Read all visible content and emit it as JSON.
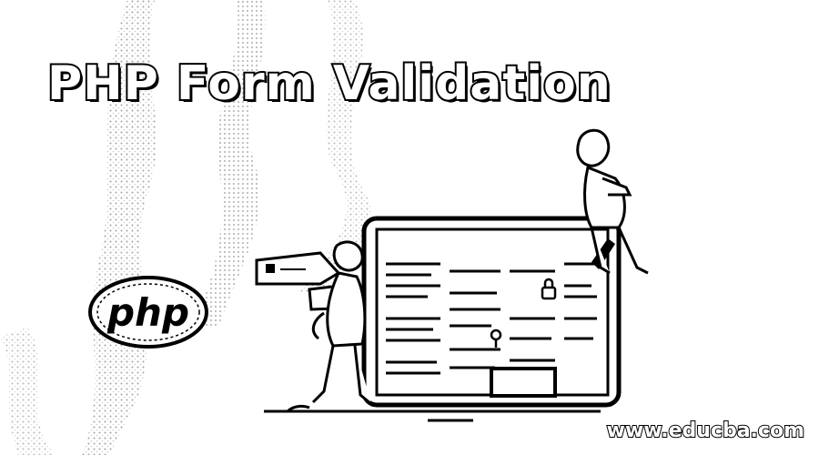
{
  "banner": {
    "title": "PHP Form Validation",
    "logo_text": "php",
    "website": "www.educba.com"
  },
  "colors": {
    "ink": "#000000",
    "paper": "#ffffff",
    "stipple": "#bdbdbd"
  },
  "icons": [
    "php-logo-icon",
    "monitor-illustration-icon",
    "person-illustration-icon"
  ]
}
